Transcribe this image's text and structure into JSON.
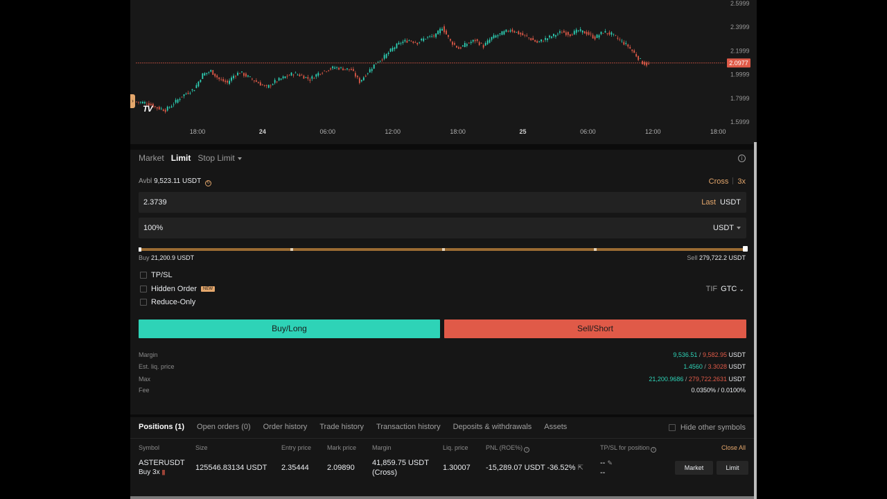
{
  "chart": {
    "price_ticks": [
      "2.5999",
      "2.3999",
      "2.1999",
      "1.9999",
      "1.7999",
      "1.5999"
    ],
    "price_tick_values": [
      2.5999,
      2.3999,
      2.1999,
      1.9999,
      1.7999,
      1.5999
    ],
    "current_price": "2.0977",
    "current_price_value": 2.0977,
    "time_ticks": [
      "18:00",
      "24",
      "06:00",
      "12:00",
      "18:00",
      "25",
      "06:00",
      "12:00",
      "18:00"
    ],
    "price_label_color": "#e05a48",
    "up_color": "#2ed3b7",
    "down_color": "#e05a48",
    "trend": [
      [
        0,
        1.77
      ],
      [
        5,
        1.76
      ],
      [
        10,
        1.72
      ],
      [
        14,
        1.7
      ],
      [
        17,
        1.74
      ],
      [
        22,
        1.82
      ],
      [
        28,
        1.88
      ],
      [
        32,
        2.0
      ],
      [
        36,
        2.03
      ],
      [
        40,
        1.96
      ],
      [
        44,
        1.93
      ],
      [
        47,
        1.99
      ],
      [
        50,
        2.02
      ],
      [
        54,
        1.98
      ],
      [
        59,
        1.93
      ],
      [
        63,
        1.89
      ],
      [
        67,
        1.94
      ],
      [
        72,
        1.98
      ],
      [
        76,
        2.01
      ],
      [
        80,
        1.99
      ],
      [
        84,
        1.96
      ],
      [
        88,
        2.01
      ],
      [
        92,
        2.04
      ],
      [
        96,
        2.06
      ],
      [
        100,
        2.05
      ],
      [
        104,
        2.04
      ],
      [
        108,
        1.94
      ],
      [
        112,
        2.02
      ],
      [
        116,
        2.1
      ],
      [
        120,
        2.15
      ],
      [
        124,
        2.22
      ],
      [
        128,
        2.27
      ],
      [
        132,
        2.29
      ],
      [
        136,
        2.27
      ],
      [
        140,
        2.31
      ],
      [
        145,
        2.33
      ],
      [
        148,
        2.4
      ],
      [
        152,
        2.28
      ],
      [
        156,
        2.22
      ],
      [
        160,
        2.26
      ],
      [
        164,
        2.29
      ],
      [
        168,
        2.24
      ],
      [
        172,
        2.31
      ],
      [
        176,
        2.34
      ],
      [
        181,
        2.38
      ],
      [
        186,
        2.34
      ],
      [
        190,
        2.31
      ],
      [
        194,
        2.27
      ],
      [
        198,
        2.3
      ],
      [
        202,
        2.33
      ],
      [
        206,
        2.36
      ],
      [
        210,
        2.34
      ],
      [
        214,
        2.37
      ],
      [
        218,
        2.35
      ],
      [
        222,
        2.31
      ],
      [
        226,
        2.36
      ],
      [
        230,
        2.34
      ],
      [
        234,
        2.29
      ],
      [
        238,
        2.24
      ],
      [
        242,
        2.16
      ],
      [
        245,
        2.1
      ],
      [
        248,
        2.08
      ]
    ]
  },
  "order": {
    "tabs": [
      {
        "label": "Market"
      },
      {
        "label": "Limit"
      },
      {
        "label": "Stop Limit"
      }
    ],
    "avbl_label": "Avbl",
    "avbl_value": "9,523.11 USDT",
    "margin_mode": "Cross",
    "leverage": "3x",
    "price_value": "2.3739",
    "price_type": "Last",
    "price_unit": "USDT",
    "amount_value": "100%",
    "amount_unit": "USDT",
    "slider_level": 1.0,
    "buy_label": "Buy",
    "buy_amount": "21,200.9 USDT",
    "sell_label": "Sell",
    "sell_amount": "279,722.2 USDT",
    "tpsl": "TP/SL",
    "hidden_order": "Hidden Order",
    "new_badge": "NEW",
    "reduce_only": "Reduce-Only",
    "tif_label": "TIF",
    "tif_value": "GTC",
    "buy_btn": "Buy/Long",
    "sell_btn": "Sell/Short",
    "stats": {
      "margin_label": "Margin",
      "margin_buy": "9,536.51",
      "margin_sell": "9,582.95",
      "liq_label": "Est. liq. price",
      "liq_buy": "1.4560",
      "liq_sell": "3.3028",
      "max_label": "Max",
      "max_buy": "21,200.9686",
      "max_sell": "279,722.2631",
      "fee_label": "Fee",
      "fee_value": "0.0350% / 0.0100%",
      "unit": "USDT",
      "sep": "/"
    }
  },
  "positions": {
    "tabs": [
      "Positions (1)",
      "Open orders (0)",
      "Order history",
      "Trade history",
      "Transaction history",
      "Deposits & withdrawals",
      "Assets"
    ],
    "hide_other": "Hide other symbols",
    "close_all": "Close All",
    "headers": {
      "symbol": "Symbol",
      "size": "Size",
      "entry": "Entry price",
      "mark": "Mark price",
      "margin": "Margin",
      "liq": "Liq. price",
      "pnl": "PNL (ROE%)",
      "tpsl": "TP/SL for position"
    },
    "row": {
      "symbol": "ASTERUSDT",
      "side": "Buy 3x",
      "bars": "||||",
      "size": "125546.83134 USDT",
      "entry": "2.35444",
      "mark": "2.09890",
      "margin": "41,859.75 USDT",
      "margin_mode": "(Cross)",
      "liq": "1.30007",
      "pnl": "-15,289.07 USDT -36.52%",
      "tp": "--",
      "sl": "--",
      "market_btn": "Market",
      "limit_btn": "Limit"
    }
  }
}
